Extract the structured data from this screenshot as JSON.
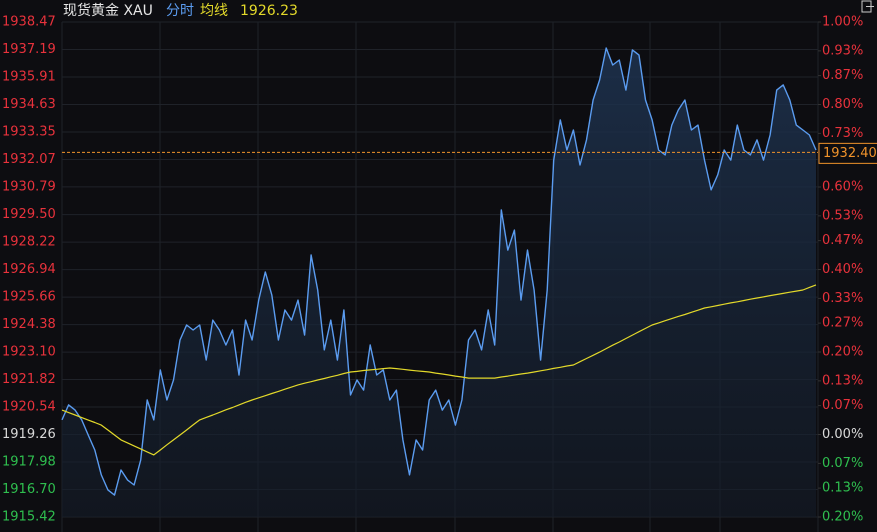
{
  "chart_data": {
    "type": "line",
    "title": "现货黄金 XAU",
    "header_value": 1926.23,
    "base": 1919.26,
    "up_color": "#e8323c",
    "down_color": "#2fbf4f",
    "flat_color": "#d8d8d8",
    "grid": true,
    "series": [
      {
        "name": "分时",
        "color": "#5b9cf0",
        "values": [
          1919.94,
          1920.64,
          1920.4,
          1919.94,
          1919.24,
          1918.54,
          1917.38,
          1916.68,
          1916.44,
          1917.61,
          1917.14,
          1916.91,
          1918.07,
          1920.87,
          1919.94,
          1922.27,
          1920.87,
          1921.8,
          1923.66,
          1924.36,
          1924.13,
          1924.36,
          1922.73,
          1924.59,
          1924.13,
          1923.43,
          1924.13,
          1922.03,
          1924.59,
          1923.66,
          1925.52,
          1926.83,
          1925.76,
          1923.66,
          1925.06,
          1924.59,
          1925.52,
          1923.89,
          1927.62,
          1925.99,
          1923.2,
          1924.59,
          1922.73,
          1925.06,
          1921.1,
          1921.8,
          1921.33,
          1923.43,
          1922.03,
          1922.27,
          1920.87,
          1921.33,
          1919.01,
          1917.38,
          1919.01,
          1918.54,
          1920.87,
          1921.33,
          1920.4,
          1920.87,
          1919.7,
          1920.87,
          1923.66,
          1924.13,
          1923.2,
          1925.06,
          1923.43,
          1929.72,
          1927.85,
          1928.78,
          1925.52,
          1927.85,
          1925.99,
          1922.73,
          1925.99,
          1932.04,
          1933.91,
          1932.51,
          1933.44,
          1931.81,
          1932.98,
          1934.84,
          1935.77,
          1937.26,
          1936.47,
          1936.7,
          1935.3,
          1937.17,
          1936.93,
          1934.84,
          1933.91,
          1932.51,
          1932.28,
          1933.67,
          1934.37,
          1934.84,
          1933.44,
          1933.67,
          1932.04,
          1930.65,
          1931.35,
          1932.51,
          1932.04,
          1933.67,
          1932.51,
          1932.28,
          1932.98,
          1932.04,
          1933.21,
          1935.3,
          1935.54,
          1934.84,
          1933.67,
          1933.44,
          1933.21,
          1932.51
        ]
      },
      {
        "name": "均线",
        "color": "#e3d92a",
        "values": [
          1920.4,
          1920.28,
          1920.17,
          1920.05,
          1919.93,
          1919.82,
          1919.7,
          1919.47,
          1919.24,
          1919.01,
          1918.87,
          1918.73,
          1918.59,
          1918.45,
          1918.31,
          1918.54,
          1918.78,
          1919.01,
          1919.24,
          1919.47,
          1919.71,
          1919.94,
          1920.06,
          1920.17,
          1920.29,
          1920.41,
          1920.52,
          1920.64,
          1920.76,
          1920.87,
          1920.97,
          1921.07,
          1921.17,
          1921.27,
          1921.37,
          1921.47,
          1921.57,
          1921.65,
          1921.72,
          1921.8,
          1921.87,
          1921.95,
          1922.02,
          1922.1,
          1922.17,
          1922.2,
          1922.24,
          1922.27,
          1922.3,
          1922.33,
          1922.36,
          1922.33,
          1922.3,
          1922.26,
          1922.23,
          1922.2,
          1922.17,
          1922.12,
          1922.08,
          1922.03,
          1921.98,
          1921.94,
          1921.89,
          1921.89,
          1921.89,
          1921.89,
          1921.89,
          1921.94,
          1921.98,
          1922.03,
          1922.08,
          1922.12,
          1922.17,
          1922.23,
          1922.28,
          1922.34,
          1922.39,
          1922.45,
          1922.5,
          1922.65,
          1922.8,
          1922.95,
          1923.1,
          1923.26,
          1923.42,
          1923.57,
          1923.73,
          1923.89,
          1924.05,
          1924.2,
          1924.36,
          1924.46,
          1924.56,
          1924.66,
          1924.76,
          1924.85,
          1924.95,
          1925.05,
          1925.15,
          1925.21,
          1925.27,
          1925.33,
          1925.39,
          1925.44,
          1925.5,
          1925.56,
          1925.62,
          1925.67,
          1925.73,
          1925.78,
          1925.83,
          1925.89,
          1925.94,
          1925.99,
          1926.11,
          1926.23
        ]
      }
    ],
    "ylim": [
      1915.42,
      1938.47
    ],
    "yticks": [
      1938.47,
      1937.19,
      1935.91,
      1934.63,
      1933.35,
      1932.07,
      1930.79,
      {
        "value": 1929.5,
        "label": "1929.50"
      },
      1928.22,
      1926.94,
      1925.66,
      1924.38,
      {
        "value": 1923.1,
        "label": "1923.10"
      },
      1921.82,
      1920.54,
      1919.26,
      1917.98,
      {
        "value": 1916.7,
        "label": "1916.70"
      },
      1915.42
    ],
    "y2lim": [
      -0.2,
      1.0
    ],
    "y2ticks": [
      {
        "value": 1.0,
        "label": "1.00%"
      },
      {
        "value": 0.93,
        "label": "0.93%"
      },
      {
        "value": 0.87,
        "label": "0.87%"
      },
      {
        "value": 0.8,
        "label": "0.80%"
      },
      {
        "value": 0.73,
        "label": "0.73%"
      },
      {
        "value": 0.6,
        "label": "0.60%"
      },
      {
        "value": 0.53,
        "label": "0.53%"
      },
      {
        "value": 0.47,
        "label": "0.47%"
      },
      {
        "value": 0.4,
        "label": "0.40%"
      },
      {
        "value": 0.33,
        "label": "0.33%"
      },
      {
        "value": 0.27,
        "label": "0.27%"
      },
      {
        "value": 0.2,
        "label": "0.20%"
      },
      {
        "value": 0.13,
        "label": "0.13%"
      },
      {
        "value": 0.07,
        "label": "0.07%"
      },
      {
        "value": 0,
        "label": "0.00%"
      },
      {
        "value": -0.07,
        "label": "0.07%"
      },
      {
        "value": -0.13,
        "label": "0.13%"
      },
      {
        "value": -0.2,
        "label": "0.20%"
      }
    ],
    "price_marker": {
      "value": 1932.4,
      "label": "1932.40",
      "color": "#f0932b"
    }
  }
}
